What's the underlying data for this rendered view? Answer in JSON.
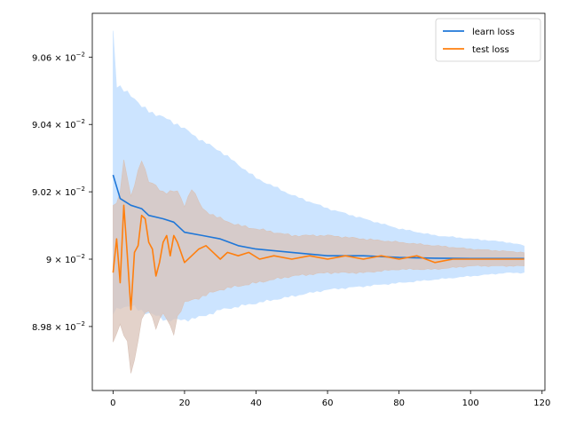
{
  "chart_data": {
    "type": "line",
    "title": "",
    "xlabel": "",
    "ylabel": "",
    "xlim": [
      -5.8,
      120.8
    ],
    "ylim": [
      0.08961,
      0.09073
    ],
    "xticks": [
      0,
      20,
      40,
      60,
      80,
      100,
      120
    ],
    "xtick_labels": [
      "0",
      "20",
      "40",
      "60",
      "80",
      "100",
      "120"
    ],
    "yticks": [
      0.0898,
      0.09,
      0.0902,
      0.0904,
      0.0906
    ],
    "ytick_labels": [
      {
        "base": "8.98",
        "exp": "−2"
      },
      {
        "base": "9",
        "exp": "−2"
      },
      {
        "base": "9.02",
        "exp": "−2"
      },
      {
        "base": "9.04",
        "exp": "−2"
      },
      {
        "base": "9.06",
        "exp": "−2"
      }
    ],
    "grid": false,
    "legend_position": "top-right",
    "series": [
      {
        "name": "learn loss",
        "color": "#1f77d8",
        "band_color": "#cce4ff",
        "points": [
          [
            0,
            0.09025
          ],
          [
            2,
            0.09018
          ],
          [
            5,
            0.09016
          ],
          [
            8,
            0.09015
          ],
          [
            10,
            0.09013
          ],
          [
            14,
            0.09012
          ],
          [
            17,
            0.09011
          ],
          [
            20,
            0.09008
          ],
          [
            25,
            0.09007
          ],
          [
            30,
            0.09006
          ],
          [
            35,
            0.09004
          ],
          [
            40,
            0.09003
          ],
          [
            50,
            0.09002
          ],
          [
            60,
            0.09001
          ],
          [
            70,
            0.09001
          ],
          [
            80,
            0.090005
          ],
          [
            90,
            0.090003
          ],
          [
            100,
            0.090002
          ],
          [
            110,
            0.090002
          ],
          [
            115,
            0.090002
          ]
        ],
        "upper": [
          [
            0,
            0.09068
          ],
          [
            1,
            0.09051
          ],
          [
            5,
            0.09049
          ],
          [
            8,
            0.09045
          ],
          [
            12,
            0.09043
          ],
          [
            18,
            0.0904
          ],
          [
            25,
            0.09035
          ],
          [
            30,
            0.09032
          ],
          [
            40,
            0.09024
          ],
          [
            50,
            0.09019
          ],
          [
            60,
            0.09015
          ],
          [
            70,
            0.09012
          ],
          [
            80,
            0.09009
          ],
          [
            90,
            0.09007
          ],
          [
            100,
            0.09006
          ],
          [
            110,
            0.09005
          ],
          [
            115,
            0.09004
          ]
        ],
        "lower": [
          [
            0,
            0.08984
          ],
          [
            2,
            0.08986
          ],
          [
            5,
            0.08986
          ],
          [
            10,
            0.08984
          ],
          [
            15,
            0.08982
          ],
          [
            20,
            0.08982
          ],
          [
            25,
            0.08983
          ],
          [
            30,
            0.08985
          ],
          [
            40,
            0.08987
          ],
          [
            50,
            0.08989
          ],
          [
            60,
            0.08991
          ],
          [
            70,
            0.08992
          ],
          [
            80,
            0.08993
          ],
          [
            90,
            0.08994
          ],
          [
            100,
            0.08995
          ],
          [
            110,
            0.08996
          ],
          [
            115,
            0.08996
          ]
        ]
      },
      {
        "name": "test loss",
        "color": "#ff7f0e",
        "band_color": "#d9c3b8",
        "points": [
          [
            0,
            0.08996
          ],
          [
            1,
            0.09006
          ],
          [
            2,
            0.08993
          ],
          [
            3,
            0.09016
          ],
          [
            4,
            0.09001
          ],
          [
            5,
            0.08985
          ],
          [
            6,
            0.09002
          ],
          [
            7,
            0.09004
          ],
          [
            8,
            0.09013
          ],
          [
            9,
            0.09012
          ],
          [
            10,
            0.09005
          ],
          [
            11,
            0.09003
          ],
          [
            12,
            0.08995
          ],
          [
            13,
            0.08999
          ],
          [
            14,
            0.09005
          ],
          [
            15,
            0.09007
          ],
          [
            16,
            0.09001
          ],
          [
            17,
            0.09007
          ],
          [
            18,
            0.09005
          ],
          [
            19,
            0.09002
          ],
          [
            20,
            0.08999
          ],
          [
            22,
            0.09001
          ],
          [
            24,
            0.09003
          ],
          [
            26,
            0.09004
          ],
          [
            28,
            0.09002
          ],
          [
            30,
            0.09
          ],
          [
            32,
            0.09002
          ],
          [
            35,
            0.09001
          ],
          [
            38,
            0.09002
          ],
          [
            41,
            0.09
          ],
          [
            45,
            0.09001
          ],
          [
            50,
            0.09
          ],
          [
            55,
            0.09001
          ],
          [
            60,
            0.09
          ],
          [
            65,
            0.09001
          ],
          [
            70,
            0.09
          ],
          [
            75,
            0.09001
          ],
          [
            80,
            0.09
          ],
          [
            85,
            0.09001
          ],
          [
            90,
            0.08999
          ],
          [
            95,
            0.09
          ],
          [
            100,
            0.09
          ],
          [
            105,
            0.09
          ],
          [
            110,
            0.09
          ],
          [
            115,
            0.09
          ]
        ],
        "upper": [
          [
            0,
            0.09015
          ],
          [
            2,
            0.0902
          ],
          [
            3,
            0.0903
          ],
          [
            5,
            0.09018
          ],
          [
            8,
            0.0903
          ],
          [
            10,
            0.09023
          ],
          [
            14,
            0.0902
          ],
          [
            18,
            0.0902
          ],
          [
            20,
            0.09016
          ],
          [
            22,
            0.09021
          ],
          [
            25,
            0.09015
          ],
          [
            28,
            0.09013
          ],
          [
            30,
            0.09012
          ],
          [
            35,
            0.0901
          ],
          [
            40,
            0.09009
          ],
          [
            50,
            0.09007
          ],
          [
            60,
            0.09007
          ],
          [
            70,
            0.09006
          ],
          [
            80,
            0.09005
          ],
          [
            90,
            0.09004
          ],
          [
            100,
            0.09003
          ],
          [
            115,
            0.09002
          ]
        ],
        "lower": [
          [
            0,
            0.08976
          ],
          [
            2,
            0.0898
          ],
          [
            4,
            0.08975
          ],
          [
            5,
            0.08967
          ],
          [
            6,
            0.0897
          ],
          [
            8,
            0.08982
          ],
          [
            10,
            0.08985
          ],
          [
            12,
            0.0898
          ],
          [
            14,
            0.08984
          ],
          [
            17,
            0.08978
          ],
          [
            18,
            0.08983
          ],
          [
            20,
            0.08987
          ],
          [
            25,
            0.08989
          ],
          [
            30,
            0.08991
          ],
          [
            40,
            0.08993
          ],
          [
            50,
            0.08995
          ],
          [
            60,
            0.08996
          ],
          [
            70,
            0.08996
          ],
          [
            80,
            0.08997
          ],
          [
            90,
            0.08997
          ],
          [
            100,
            0.08998
          ],
          [
            115,
            0.08998
          ]
        ]
      }
    ]
  }
}
